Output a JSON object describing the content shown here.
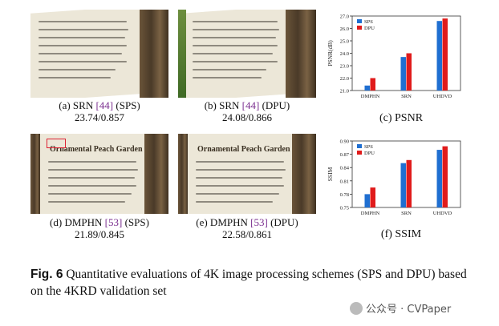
{
  "panels": [
    {
      "id": "a",
      "label": "(a) SRN ",
      "ref": "[44]",
      "suffix": " (SPS)",
      "score": "23.74/0.857"
    },
    {
      "id": "b",
      "label": "(b) SRN ",
      "ref": "[44]",
      "suffix": " (DPU)",
      "score": "24.08/0.866"
    },
    {
      "id": "d",
      "label": "(d) DMPHN ",
      "ref": "[53]",
      "suffix": " (SPS)",
      "score": "21.89/0.845"
    },
    {
      "id": "e",
      "label": "(e) DMPHN ",
      "ref": "[53]",
      "suffix": " (DPU)",
      "score": "22.58/0.861"
    }
  ],
  "photo_sign_title": "Ornamental Peach Garden",
  "chart_captions": {
    "psnr": "(c) PSNR",
    "ssim": "(f) SSIM"
  },
  "chart_data": [
    {
      "type": "bar",
      "ylabel": "PSNR(dB)",
      "categories": [
        "DMPHN",
        "SRN",
        "UHDVD"
      ],
      "series": [
        {
          "name": "SPS",
          "values": [
            21.4,
            23.7,
            26.6
          ]
        },
        {
          "name": "DPU",
          "values": [
            22.0,
            24.0,
            26.8
          ]
        }
      ],
      "ylim": [
        21.0,
        27.0
      ],
      "yticks": [
        "21.0",
        "22.0",
        "23.0",
        "24.0",
        "25.0",
        "26.0",
        "27.0"
      ],
      "legend": "top-left",
      "colors": [
        "#1f6fd1",
        "#e01b1b"
      ]
    },
    {
      "type": "bar",
      "ylabel": "SSIM",
      "categories": [
        "DMPHN",
        "SRN",
        "UHDVD"
      ],
      "series": [
        {
          "name": "SPS",
          "values": [
            0.78,
            0.85,
            0.88
          ]
        },
        {
          "name": "DPU",
          "values": [
            0.795,
            0.857,
            0.888
          ]
        }
      ],
      "ylim": [
        0.75,
        0.9
      ],
      "yticks": [
        "0.75",
        "0.78",
        "0.81",
        "0.84",
        "0.87",
        "0.90"
      ],
      "legend": "top-left",
      "colors": [
        "#1f6fd1",
        "#e01b1b"
      ]
    }
  ],
  "caption": {
    "label": "Fig. 6",
    "text": "   Quantitative evaluations of 4K image processing schemes (SPS and DPU) based on the 4KRD validation set"
  },
  "watermark": "公众号 · CVPaper"
}
